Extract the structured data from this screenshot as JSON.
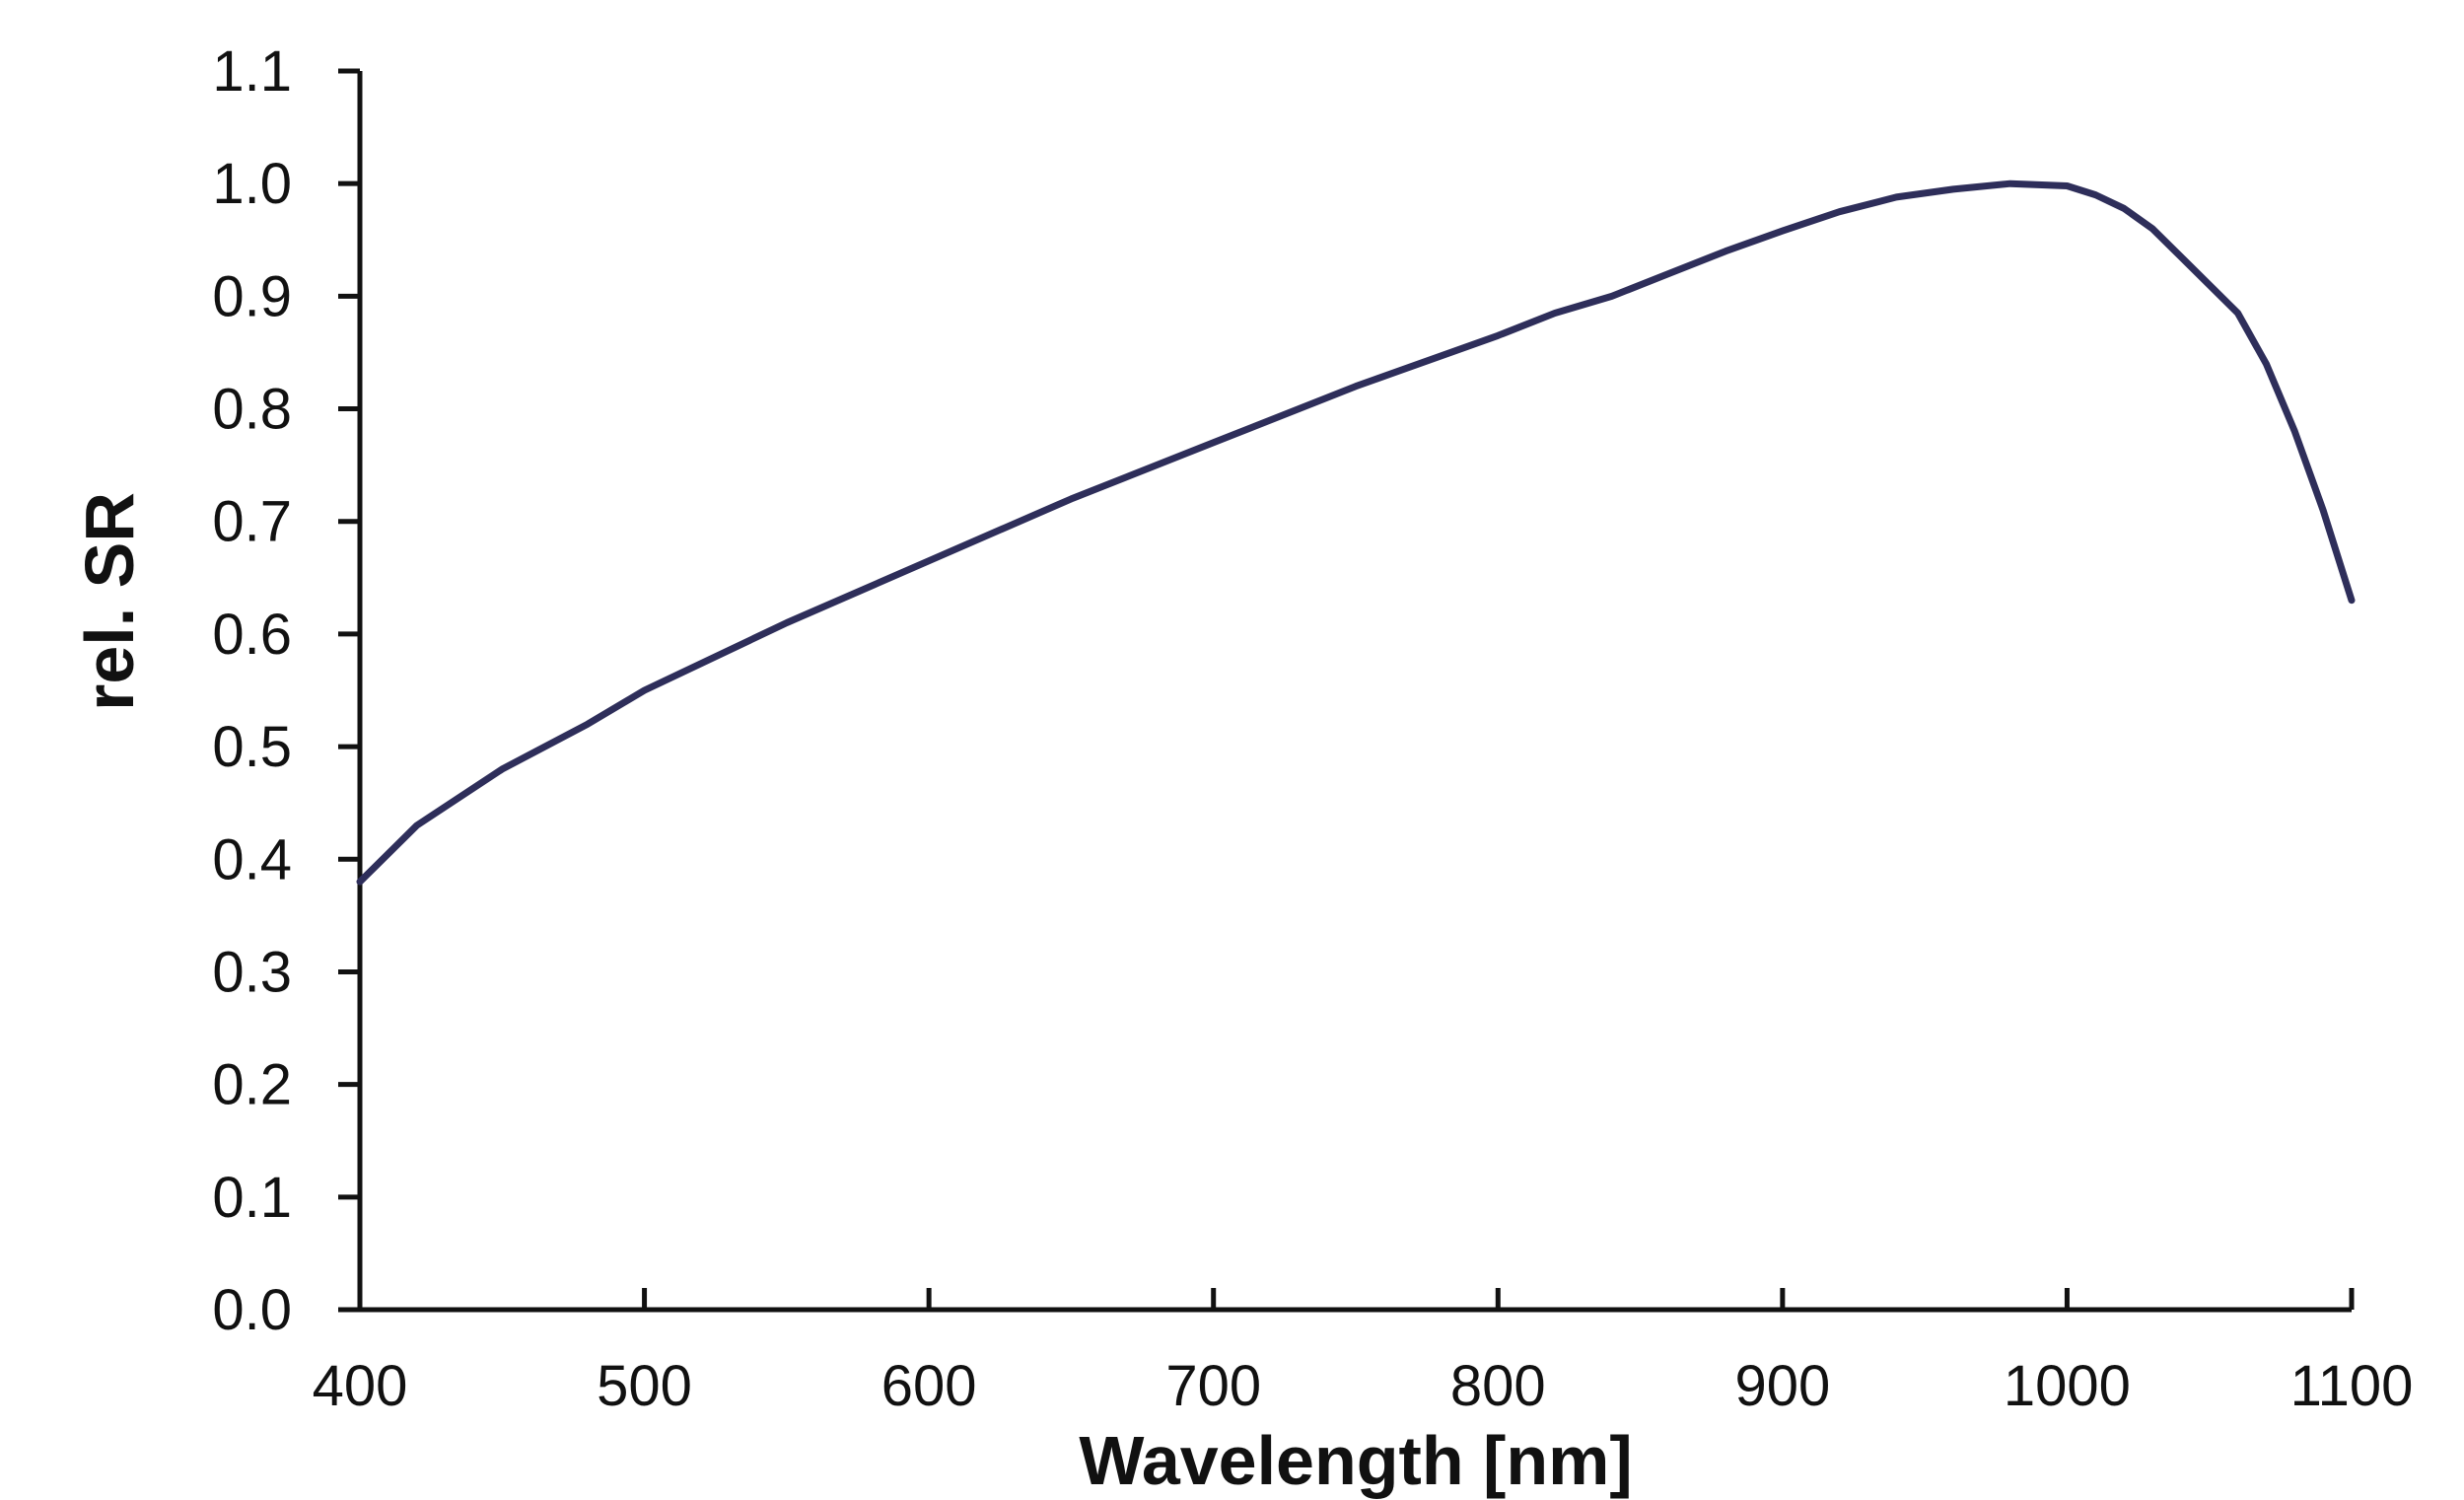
{
  "chart_data": {
    "type": "line",
    "title": "",
    "xlabel": "Wavelength [nm]",
    "ylabel": "rel. SR",
    "xlim": [
      400,
      1100
    ],
    "ylim": [
      0.0,
      1.1
    ],
    "xticks": [
      "400",
      "500",
      "600",
      "700",
      "800",
      "900",
      "1000",
      "1100"
    ],
    "yticks": [
      "0.0",
      "0.1",
      "0.2",
      "0.3",
      "0.4",
      "0.5",
      "0.6",
      "0.7",
      "0.8",
      "0.9",
      "1.0",
      "1.1"
    ],
    "grid": false,
    "legend": "none",
    "series_color": "#2e2e5a",
    "series": [
      {
        "x": [
          400,
          420,
          450,
          480,
          500,
          550,
          600,
          650,
          700,
          750,
          800,
          820,
          840,
          860,
          880,
          900,
          920,
          940,
          960,
          980,
          1000,
          1010,
          1020,
          1030,
          1040,
          1050,
          1060,
          1070,
          1080,
          1090,
          1100
        ],
        "y": [
          0.38,
          0.43,
          0.48,
          0.52,
          0.55,
          0.61,
          0.665,
          0.72,
          0.77,
          0.82,
          0.865,
          0.885,
          0.9,
          0.92,
          0.94,
          0.958,
          0.975,
          0.988,
          0.995,
          1.0,
          0.998,
          0.99,
          0.978,
          0.96,
          0.935,
          0.91,
          0.885,
          0.84,
          0.78,
          0.71,
          0.63
        ]
      }
    ]
  }
}
